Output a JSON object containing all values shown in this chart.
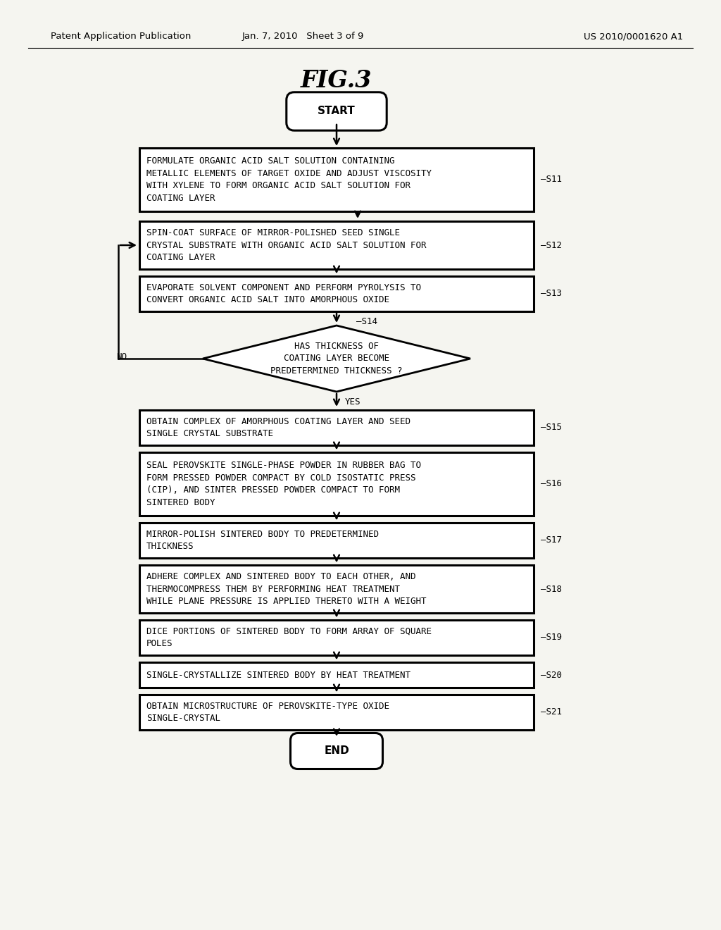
{
  "title": "FIG.3",
  "header_left": "Patent Application Publication",
  "header_mid": "Jan. 7, 2010   Sheet 3 of 9",
  "header_right": "US 2010/0001620 A1",
  "bg_color": "#f5f5f0",
  "steps": [
    {
      "id": "START",
      "type": "rounded",
      "text": "START"
    },
    {
      "id": "S11",
      "type": "rect",
      "label": "S11",
      "lines": [
        "FORMULATE ORGANIC ACID SALT SOLUTION CONTAINING",
        "METALLIC ELEMENTS OF TARGET OXIDE AND ADJUST VISCOSITY",
        "WITH XYLENE TO FORM ORGANIC ACID SALT SOLUTION FOR",
        "COATING LAYER"
      ]
    },
    {
      "id": "S12",
      "type": "rect",
      "label": "S12",
      "lines": [
        "SPIN-COAT SURFACE OF MIRROR-POLISHED SEED SINGLE",
        "CRYSTAL SUBSTRATE WITH ORGANIC ACID SALT SOLUTION FOR",
        "COATING LAYER"
      ]
    },
    {
      "id": "S13",
      "type": "rect",
      "label": "S13",
      "lines": [
        "EVAPORATE SOLVENT COMPONENT AND PERFORM PYROLYSIS TO",
        "CONVERT ORGANIC ACID SALT INTO AMORPHOUS OXIDE"
      ]
    },
    {
      "id": "S14",
      "type": "diamond",
      "label": "S14",
      "lines": [
        "HAS THICKNESS OF",
        "COATING LAYER BECOME",
        "PREDETERMINED THICKNESS ?"
      ],
      "no_label": "NO",
      "yes_label": "YES"
    },
    {
      "id": "S15",
      "type": "rect",
      "label": "S15",
      "lines": [
        "OBTAIN COMPLEX OF AMORPHOUS COATING LAYER AND SEED",
        "SINGLE CRYSTAL SUBSTRATE"
      ]
    },
    {
      "id": "S16",
      "type": "rect",
      "label": "S16",
      "lines": [
        "SEAL PEROVSKITE SINGLE-PHASE POWDER IN RUBBER BAG TO",
        "FORM PRESSED POWDER COMPACT BY COLD ISOSTATIC PRESS",
        "(CIP), AND SINTER PRESSED POWDER COMPACT TO FORM",
        "SINTERED BODY"
      ]
    },
    {
      "id": "S17",
      "type": "rect",
      "label": "S17",
      "lines": [
        "MIRROR-POLISH SINTERED BODY TO PREDETERMINED",
        "THICKNESS"
      ]
    },
    {
      "id": "S18",
      "type": "rect",
      "label": "S18",
      "lines": [
        "ADHERE COMPLEX AND SINTERED BODY TO EACH OTHER, AND",
        "THERMOCOMPRESS THEM BY PERFORMING HEAT TREATMENT",
        "WHILE PLANE PRESSURE IS APPLIED THERETO WITH A WEIGHT"
      ]
    },
    {
      "id": "S19",
      "type": "rect",
      "label": "S19",
      "lines": [
        "DICE PORTIONS OF SINTERED BODY TO FORM ARRAY OF SQUARE",
        "POLES"
      ]
    },
    {
      "id": "S20",
      "type": "rect",
      "label": "S20",
      "lines": [
        "SINGLE-CRYSTALLIZE SINTERED BODY BY HEAT TREATMENT"
      ]
    },
    {
      "id": "S21",
      "type": "rect",
      "label": "S21",
      "lines": [
        "OBTAIN MICROSTRUCTURE OF PEROVSKITE-TYPE OXIDE",
        "SINGLE-CRYSTAL"
      ]
    },
    {
      "id": "END",
      "type": "rounded",
      "text": "END"
    }
  ]
}
